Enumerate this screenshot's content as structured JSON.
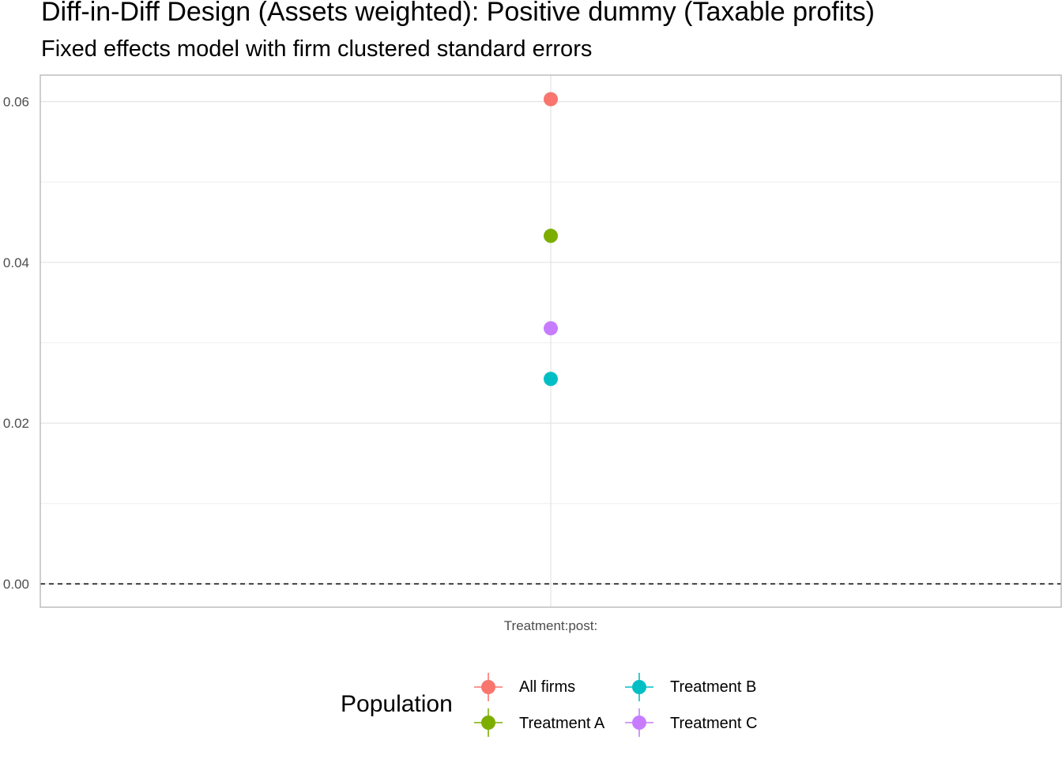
{
  "chart": {
    "title": "Diff-in-Diff Design (Assets weighted): Positive dummy (Taxable profits)",
    "subtitle": "Fixed effects model with firm clustered standard errors"
  },
  "legend": {
    "title": "Population",
    "items": [
      {
        "label": "All firms",
        "color": "#F8766D"
      },
      {
        "label": "Treatment A",
        "color": "#7CAE00"
      },
      {
        "label": "Treatment B",
        "color": "#00BFC4"
      },
      {
        "label": "Treatment C",
        "color": "#C77CFF"
      }
    ]
  },
  "chart_data": {
    "type": "scatter",
    "title": "Diff-in-Diff Design (Assets weighted): Positive dummy (Taxable profits)",
    "subtitle": "Fixed effects model with firm clustered standard errors",
    "xlabel": "",
    "ylabel": "",
    "categories": [
      "Treatment:post:"
    ],
    "ylim": [
      -0.003,
      0.063
    ],
    "yticks": [
      0.0,
      0.02,
      0.04,
      0.06
    ],
    "ytick_labels": [
      "0.00",
      "0.02",
      "0.04",
      "0.06"
    ],
    "reference_line": 0,
    "grid": true,
    "legend_position": "bottom",
    "series": [
      {
        "name": "All firms",
        "values": [
          0.0603
        ],
        "color": "#F8766D"
      },
      {
        "name": "Treatment A",
        "values": [
          0.0433
        ],
        "color": "#7CAE00"
      },
      {
        "name": "Treatment B",
        "values": [
          0.0255
        ],
        "color": "#00BFC4"
      },
      {
        "name": "Treatment C",
        "values": [
          0.0318
        ],
        "color": "#C77CFF"
      }
    ]
  }
}
